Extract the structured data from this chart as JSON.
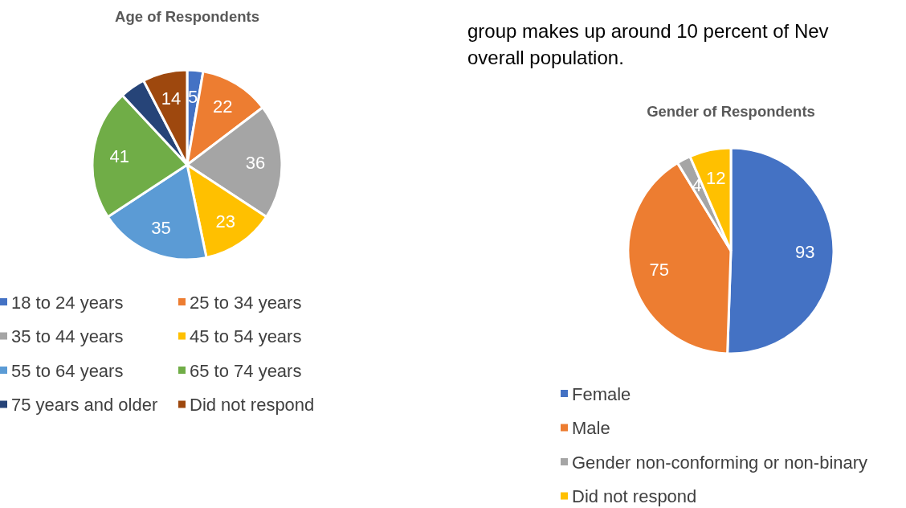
{
  "chart_data": [
    {
      "type": "pie",
      "title": "Age of Respondents",
      "categories": [
        "18 to 24 years",
        "25 to 34 years",
        "35 to 44 years",
        "45 to 54 years",
        "55 to 64 years",
        "65 to 74 years",
        "75 years and older",
        "Did not respond"
      ],
      "values": [
        5,
        22,
        36,
        23,
        35,
        41,
        8,
        14
      ],
      "value_labels": [
        "5",
        "22",
        "36",
        "23",
        "35",
        "41",
        null,
        "14"
      ],
      "colors": [
        "#4472c4",
        "#ed7d31",
        "#a5a5a5",
        "#ffc000",
        "#5b9bd5",
        "#70ad47",
        "#264478",
        "#9e480e"
      ],
      "legend": "bottom"
    },
    {
      "type": "pie",
      "title": "Gender of Respondents",
      "categories": [
        "Female",
        "Male",
        "Gender non-conforming or non-binary",
        "Did not respond"
      ],
      "values": [
        93,
        75,
        4,
        12
      ],
      "data_labels": true,
      "colors": [
        "#4472c4",
        "#ed7d31",
        "#a5a5a5",
        "#ffc000"
      ],
      "legend": "bottom",
      "annotations": [
        "group makes up around 10 percent of Nev",
        "overall population."
      ]
    }
  ]
}
